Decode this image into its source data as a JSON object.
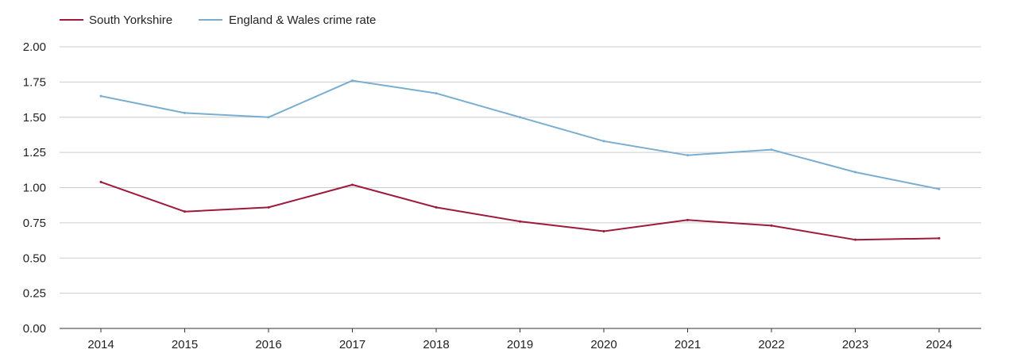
{
  "chart_data": {
    "type": "line",
    "title": "",
    "xlabel": "",
    "ylabel": "",
    "categories": [
      "2014",
      "2015",
      "2016",
      "2017",
      "2018",
      "2019",
      "2020",
      "2021",
      "2022",
      "2023",
      "2024"
    ],
    "ylim": [
      0,
      2
    ],
    "yticks": [
      "0.00",
      "0.25",
      "0.50",
      "0.75",
      "1.00",
      "1.25",
      "1.50",
      "1.75",
      "2.00"
    ],
    "grid": true,
    "legend_position": "top-left",
    "series": [
      {
        "name": "South Yorkshire",
        "color": "#9e1a3c",
        "values": [
          1.04,
          0.83,
          0.86,
          1.02,
          0.86,
          0.76,
          0.69,
          0.77,
          0.73,
          0.63,
          0.64
        ]
      },
      {
        "name": "England & Wales crime rate",
        "color": "#7aaed0",
        "values": [
          1.65,
          1.53,
          1.5,
          1.76,
          1.67,
          1.5,
          1.33,
          1.23,
          1.27,
          1.11,
          0.99
        ]
      }
    ]
  }
}
